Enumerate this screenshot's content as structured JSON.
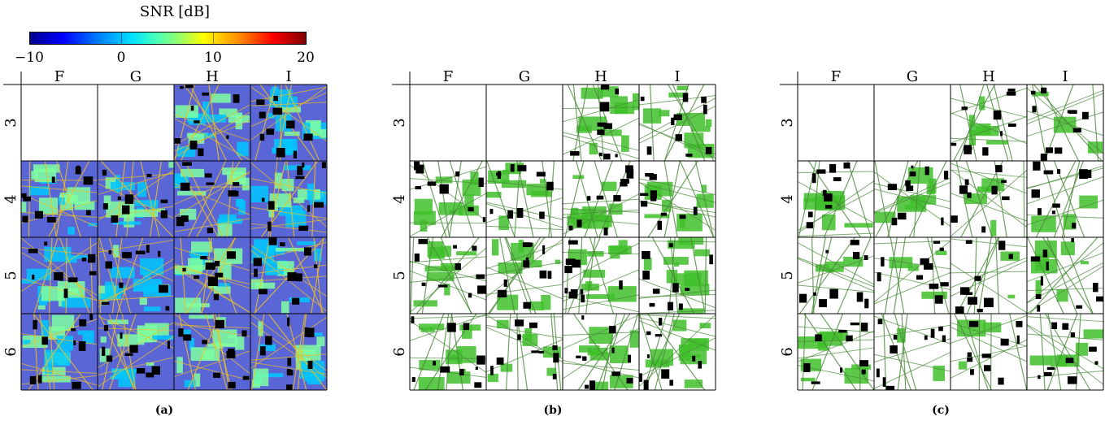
{
  "colorbar": {
    "title": "SNR [dB]",
    "ticks": [
      "−10",
      "0",
      "10",
      "20"
    ],
    "colormap": "jet"
  },
  "grid": {
    "columns": [
      "F",
      "G",
      "H",
      "I"
    ],
    "rows": [
      "3",
      "4",
      "5",
      "6"
    ],
    "empty_cells": [
      [
        0,
        0
      ],
      [
        0,
        1
      ]
    ]
  },
  "panels": [
    {
      "caption": "(a)",
      "style": "snr-heatmap",
      "colors": {
        "fill": "#1a2bd6",
        "accent": "#f0c020",
        "building": "#000000"
      }
    },
    {
      "caption": "(b)",
      "style": "green-coverage",
      "colors": {
        "fill": "#3fbf2a",
        "building": "#000000"
      }
    },
    {
      "caption": "(c)",
      "style": "green-sparse",
      "colors": {
        "fill": "#3fbf2a",
        "building": "#000000"
      }
    }
  ]
}
